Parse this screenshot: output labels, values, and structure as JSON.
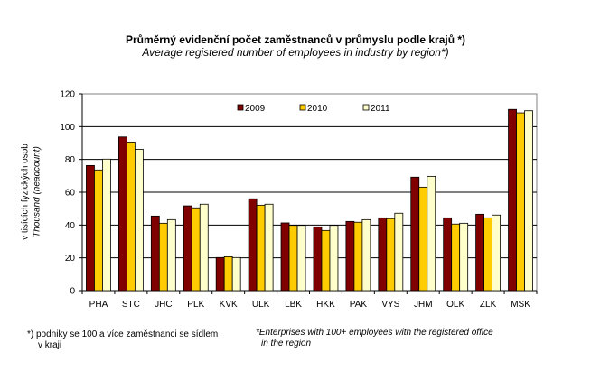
{
  "chart_data": {
    "type": "bar",
    "title": "Průměrný evidenční počet zaměstnanců  v průmyslu podle krajů *)",
    "subtitle": "Average registered number  of employees in industry by region*)",
    "ylabel": "v tisících fyzických osob",
    "ylabel_en": "Thousand (headcount)",
    "xlabel": "",
    "ylim": [
      0,
      120
    ],
    "yticks": [
      0,
      20,
      40,
      60,
      80,
      100,
      120
    ],
    "grid": true,
    "legend": "top-center",
    "categories": [
      "PHA",
      "STC",
      "JHC",
      "PLK",
      "KVK",
      "ULK",
      "LBK",
      "HKK",
      "PAK",
      "VYS",
      "JHM",
      "OLK",
      "ZLK",
      "MSK"
    ],
    "series": [
      {
        "name": "2009",
        "color": "#800000",
        "values": [
          76.3,
          93.7,
          45.5,
          51.7,
          20.2,
          56.0,
          41.3,
          38.9,
          42.2,
          44.4,
          69.2,
          44.4,
          46.6,
          110.5
        ]
      },
      {
        "name": "2010",
        "color": "#FFCC00",
        "values": [
          73.6,
          90.6,
          41.1,
          50.5,
          20.7,
          52.1,
          39.8,
          36.7,
          41.7,
          43.9,
          63.1,
          40.6,
          44.4,
          108.4
        ]
      },
      {
        "name": "2011",
        "color": "#FFFFCC",
        "values": [
          80.2,
          86.2,
          43.3,
          52.7,
          20.2,
          52.7,
          39.8,
          39.8,
          43.3,
          47.2,
          69.7,
          41.1,
          46.1,
          109.7
        ]
      }
    ]
  },
  "footnote_cz": [
    "*) podniky se 100 a více zaměstnanci se sídlem",
    "v kraji"
  ],
  "footnote_en": [
    "*Enterprises with 100+ employees with the registered office",
    "in the region"
  ]
}
